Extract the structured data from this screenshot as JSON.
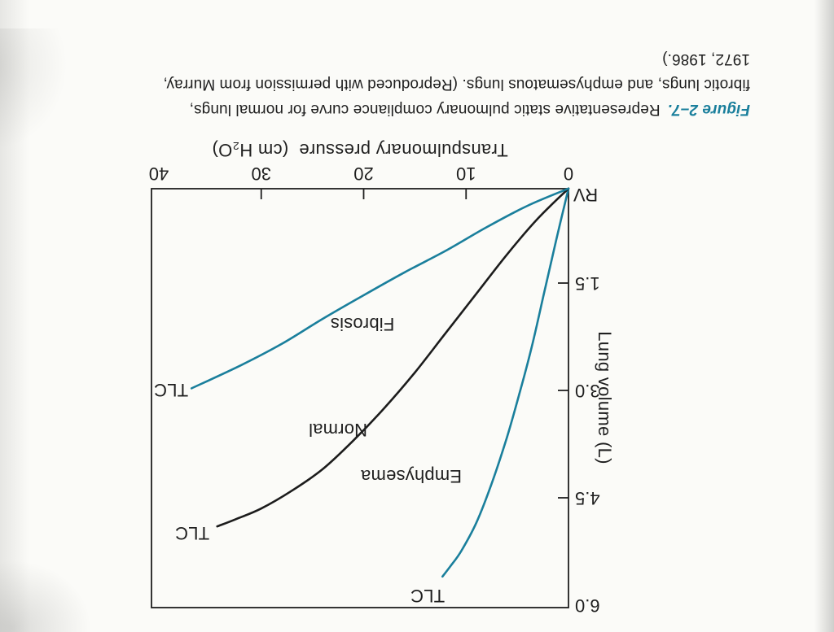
{
  "caption": {
    "label": "Figure 2–7.",
    "label_color": "#1a7f9c",
    "lines": [
      "Representative static pulmonary compliance curve for normal lungs,",
      "fibrotic lungs, and emphysematous lungs. (Reproduced with permission from Murray,",
      "1972, 1986.)"
    ]
  },
  "chart_data": {
    "type": "line",
    "title": "",
    "xlabel": "Transpulmonary pressure  (cm H₂O)",
    "ylabel": "Lung volume (L)",
    "xlim": [
      0,
      40
    ],
    "ylim": [
      0,
      6.0
    ],
    "x_tick_values": [
      0,
      10,
      20,
      30,
      40
    ],
    "x_tick_labels": [
      "0",
      "10",
      "20",
      "30",
      "40"
    ],
    "y_tick_values": [
      1.5,
      3.0,
      4.5,
      6.0
    ],
    "y_tick_labels": [
      "1.5",
      "3.0",
      "4.5",
      "6.0"
    ],
    "origin_label": "RV",
    "grid": false,
    "legend_position": "labels-next-to-curves",
    "axis_color": "#1f1f1f",
    "series": [
      {
        "name": "Emphysema",
        "color": "#1a7f9c",
        "end_label": "TLC",
        "points": [
          [
            0,
            0.18
          ],
          [
            1.2,
            0.9
          ],
          [
            2.4,
            1.65
          ],
          [
            3.6,
            2.4
          ],
          [
            4.8,
            3.05
          ],
          [
            6,
            3.65
          ],
          [
            7.5,
            4.3
          ],
          [
            9,
            4.85
          ],
          [
            10.5,
            5.25
          ],
          [
            11.5,
            5.45
          ],
          [
            12.3,
            5.6
          ]
        ]
      },
      {
        "name": "Normal",
        "color": "#1c1c1c",
        "end_label": "TLC",
        "points": [
          [
            0,
            0.18
          ],
          [
            3,
            0.6
          ],
          [
            6,
            1.1
          ],
          [
            9,
            1.65
          ],
          [
            12,
            2.2
          ],
          [
            15,
            2.75
          ],
          [
            18,
            3.25
          ],
          [
            21,
            3.7
          ],
          [
            24,
            4.1
          ],
          [
            27,
            4.4
          ],
          [
            30,
            4.65
          ],
          [
            32.5,
            4.8
          ],
          [
            34.3,
            4.9
          ]
        ]
      },
      {
        "name": "Fibrosis",
        "color": "#1a7f9c",
        "end_label": "TLC",
        "points": [
          [
            0,
            0.18
          ],
          [
            4,
            0.42
          ],
          [
            8,
            0.72
          ],
          [
            12,
            1.05
          ],
          [
            16,
            1.35
          ],
          [
            20,
            1.67
          ],
          [
            24,
            2.0
          ],
          [
            28,
            2.35
          ],
          [
            32,
            2.65
          ],
          [
            36.8,
            2.97
          ]
        ]
      }
    ]
  }
}
